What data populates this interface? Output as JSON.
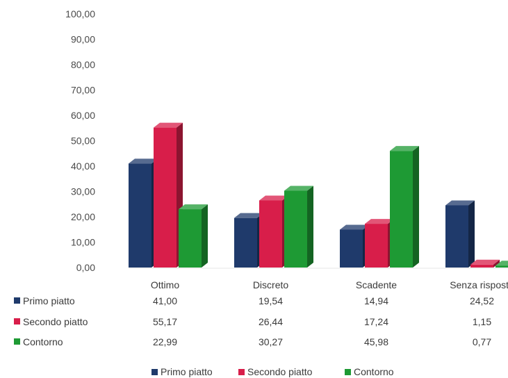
{
  "chart_data": {
    "type": "bar",
    "title": "",
    "xlabel": "",
    "ylabel": "",
    "ylim": [
      0,
      100
    ],
    "y_ticks": [
      "0,00",
      "10,00",
      "20,00",
      "30,00",
      "40,00",
      "50,00",
      "60,00",
      "70,00",
      "80,00",
      "90,00",
      "100,00"
    ],
    "categories": [
      "Ottimo",
      "Discreto",
      "Scadente",
      "Senza risposta"
    ],
    "series": [
      {
        "name": "Primo piatto",
        "color": "#1f3a6b",
        "values": [
          41.0,
          19.54,
          14.94,
          24.52
        ],
        "labels": [
          "41,00",
          "19,54",
          "14,94",
          "24,52"
        ]
      },
      {
        "name": "Secondo piatto",
        "color": "#d81e4a",
        "values": [
          55.17,
          26.44,
          17.24,
          1.15
        ],
        "labels": [
          "55,17",
          "26,44",
          "17,24",
          "1,15"
        ]
      },
      {
        "name": "Contorno",
        "color": "#1e9a34",
        "values": [
          22.99,
          30.27,
          45.98,
          0.77
        ],
        "labels": [
          "22,99",
          "30,27",
          "45,98",
          "0,77"
        ]
      }
    ],
    "grid": false,
    "legend_placement": "bottom",
    "data_table": true
  }
}
